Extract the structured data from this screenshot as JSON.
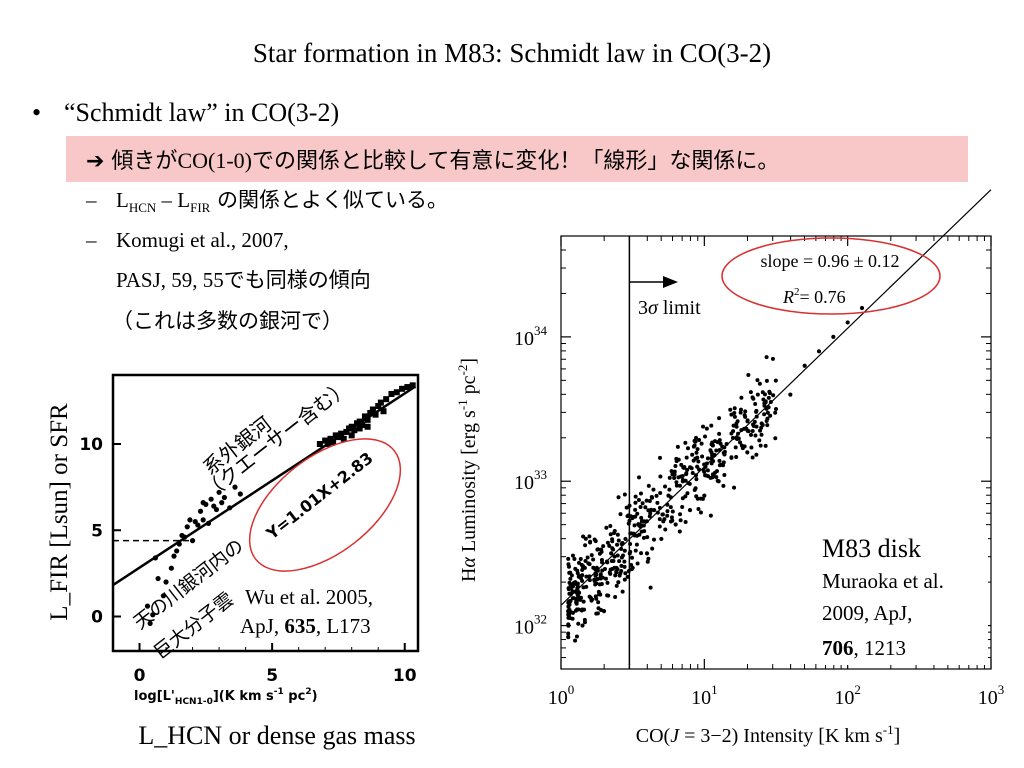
{
  "slide": {
    "title": "Star formation in M83: Schmidt law in CO(3-2)",
    "bullet": "“Schmidt law” in CO(3-2)",
    "highlight_prefix": "➔ 傾きが",
    "highlight_serif": "CO(1-0)",
    "highlight_suffix": "での関係と比較して有意に変化！「線形」な関係に。",
    "sub1_a": "L",
    "sub1_a_sub": "HCN",
    "sub1_mid": " – L",
    "sub1_b_sub": "FIR",
    "sub1_jp": " の関係とよく似ている。",
    "sub2_line1": "Komugi et al., 2007,",
    "sub2_line2a": "PASJ, 59, 55",
    "sub2_line2b": "でも同様の傾向",
    "sub3": "（これは多数の銀河で）"
  },
  "colors": {
    "highlight_bg": "#f8c8c8",
    "annotation_red": "#d93030"
  },
  "chart_data": [
    {
      "type": "scatter",
      "xlabel": "log[L'HCN1-0](K km s-1 pc2)",
      "xlabel_parts": {
        "main": "log[L'",
        "sub": "HCN1-0",
        "rest": "](K km s",
        "sup1": "-1",
        "pc": " pc",
        "sup2": "2",
        "end": ")"
      },
      "ylabel_outer": "L_FIR [Lsun] or SFR",
      "xlabel_outer": "L_HCN or dense gas mass",
      "xlim": [
        -1,
        10.5
      ],
      "ylim": [
        -2,
        14
      ],
      "xticks": [
        0,
        5,
        10
      ],
      "yticks": [
        0,
        5,
        10
      ],
      "fit_label": "Y=1.01X+2.83",
      "fit": {
        "slope": 1.01,
        "intercept": 2.83
      },
      "threshold_y": 4.4,
      "label_extragalactic": [
        "系外銀河",
        "（クエーサー含む）"
      ],
      "label_milkyway": [
        "天の川銀河内の",
        "巨大分子雲"
      ],
      "reference": [
        "Wu et al. 2005,",
        "ApJ, ",
        "635",
        ", L173"
      ],
      "galaxy_points": [
        [
          7.0,
          10.2
        ],
        [
          7.2,
          10.3
        ],
        [
          7.4,
          10.5
        ],
        [
          7.5,
          10.4
        ],
        [
          7.6,
          10.6
        ],
        [
          7.8,
          10.7
        ],
        [
          7.9,
          10.9
        ],
        [
          8.0,
          11.0
        ],
        [
          8.1,
          10.8
        ],
        [
          8.2,
          11.2
        ],
        [
          8.3,
          11.3
        ],
        [
          8.4,
          11.1
        ],
        [
          8.5,
          11.6
        ],
        [
          8.6,
          11.4
        ],
        [
          8.7,
          11.8
        ],
        [
          8.8,
          12.0
        ],
        [
          8.9,
          11.7
        ],
        [
          9.0,
          12.2
        ],
        [
          9.1,
          12.4
        ],
        [
          9.3,
          12.6
        ],
        [
          9.5,
          12.9
        ],
        [
          9.7,
          13.0
        ],
        [
          9.9,
          13.2
        ],
        [
          10.1,
          13.3
        ],
        [
          10.3,
          13.4
        ],
        [
          6.8,
          10.0
        ],
        [
          7.1,
          10.0
        ],
        [
          7.3,
          10.1
        ],
        [
          7.7,
          10.3
        ],
        [
          8.0,
          10.5
        ],
        [
          8.3,
          10.9
        ],
        [
          8.6,
          11.0
        ],
        [
          9.2,
          11.9
        ]
      ],
      "cloud_points": [
        [
          0.4,
          -0.4
        ],
        [
          0.5,
          0.1
        ],
        [
          0.3,
          0.6
        ],
        [
          0.9,
          1.2
        ],
        [
          1.0,
          2.0
        ],
        [
          0.7,
          2.2
        ],
        [
          1.2,
          2.8
        ],
        [
          0.6,
          3.4
        ],
        [
          1.3,
          3.5
        ],
        [
          1.5,
          4.2
        ],
        [
          1.7,
          4.6
        ],
        [
          1.8,
          5.2
        ],
        [
          2.0,
          4.4
        ],
        [
          2.1,
          5.5
        ],
        [
          2.3,
          6.1
        ],
        [
          2.4,
          5.6
        ],
        [
          2.5,
          6.5
        ],
        [
          2.6,
          5.4
        ],
        [
          2.7,
          6.8
        ],
        [
          2.9,
          6.2
        ],
        [
          3.0,
          7.2
        ],
        [
          3.2,
          6.9
        ],
        [
          3.4,
          6.3
        ],
        [
          3.6,
          7.5
        ],
        [
          3.8,
          7.1
        ],
        [
          1.9,
          5.6
        ],
        [
          2.2,
          5.3
        ],
        [
          2.8,
          6.4
        ],
        [
          1.6,
          4.7
        ],
        [
          1.4,
          3.8
        ],
        [
          2.4,
          6.6
        ],
        [
          3.1,
          6.6
        ]
      ]
    },
    {
      "type": "scatter",
      "xlabel": "CO(J = 3−2) Intensity [K km s-1]",
      "xlabel_parts": {
        "pre": "CO(",
        "J": "J",
        "mid": " = 3−2) Intensity [K km s",
        "sup": "-1",
        "end": "]"
      },
      "ylabel": "Hα Luminosity [erg s-1 pc-2]",
      "ylabel_parts": {
        "pre": "H",
        "alpha": "α",
        "mid": " Luminosity [erg s",
        "sup1": "-1",
        "pc": " pc",
        "sup2": "-2",
        "end": "]"
      },
      "xscale": "log",
      "yscale": "log",
      "xlim": [
        1,
        1000
      ],
      "ylim": [
        5e+31,
        5e+34
      ],
      "xtick_exponents": [
        "0",
        "1",
        "2",
        "3"
      ],
      "ytick_exponents": [
        "32",
        "33",
        "34"
      ],
      "tick_base": "10",
      "limit_label": "3σ limit",
      "limit_label_parts": [
        "3",
        "σ",
        "  limit"
      ],
      "limit_x": 3,
      "slope_text": "slope = 0.96 ± 0.12",
      "r2_text_parts": [
        "R",
        "2",
        "= 0.76"
      ],
      "fit": {
        "slope": 0.96,
        "log_intercept": 32.14
      },
      "label": "M83 disk",
      "reference": [
        "Muraoka et al.",
        "2009, ApJ,",
        "706",
        ", 1213"
      ],
      "sample_points_log": [
        [
          0.05,
          32.1
        ],
        [
          0.1,
          32.3
        ],
        [
          0.15,
          32.0
        ],
        [
          0.2,
          32.2
        ],
        [
          0.25,
          32.4
        ],
        [
          0.3,
          32.1
        ],
        [
          0.35,
          32.5
        ],
        [
          0.4,
          32.3
        ],
        [
          0.45,
          32.6
        ],
        [
          0.5,
          32.4
        ],
        [
          0.55,
          32.7
        ],
        [
          0.6,
          32.5
        ],
        [
          0.65,
          32.8
        ],
        [
          0.7,
          32.6
        ],
        [
          0.75,
          32.9
        ],
        [
          0.8,
          32.7
        ],
        [
          0.85,
          33.0
        ],
        [
          0.9,
          32.8
        ],
        [
          0.95,
          33.1
        ],
        [
          1.0,
          32.9
        ],
        [
          1.05,
          33.2
        ],
        [
          1.1,
          33.0
        ],
        [
          1.2,
          33.3
        ],
        [
          1.3,
          33.2
        ],
        [
          1.4,
          33.4
        ],
        [
          1.5,
          33.5
        ],
        [
          1.6,
          33.6
        ],
        [
          1.7,
          33.8
        ],
        [
          1.8,
          33.9
        ],
        [
          1.9,
          34.0
        ],
        [
          2.0,
          34.1
        ],
        [
          2.1,
          34.2
        ]
      ]
    }
  ]
}
